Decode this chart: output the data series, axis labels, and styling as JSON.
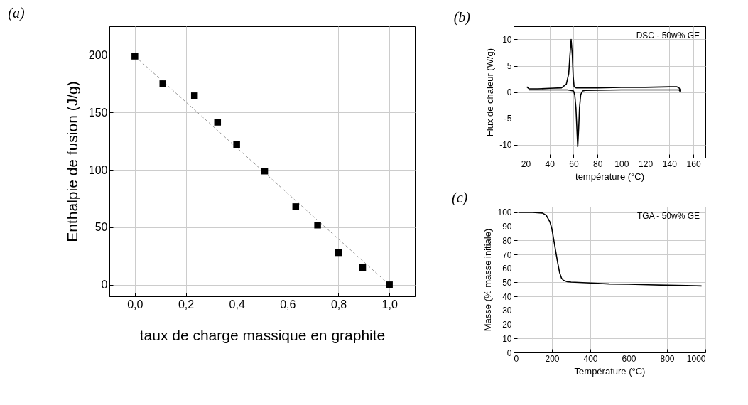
{
  "chart_data": [
    {
      "type": "scatter",
      "title": "(a)",
      "xlabel": "taux de charge massique en graphite",
      "ylabel": "Enthalpie de fusion (J/g)",
      "xlim": [
        -0.1,
        1.1
      ],
      "ylim": [
        -10,
        225
      ],
      "xticks": [
        {
          "value": 0,
          "label": "0,0"
        },
        {
          "value": 0.2,
          "label": "0,2"
        },
        {
          "value": 0.4,
          "label": "0,4"
        },
        {
          "value": 0.6,
          "label": "0,6"
        },
        {
          "value": 0.8,
          "label": "0,8"
        },
        {
          "value": 1,
          "label": "1,0"
        }
      ],
      "yticks": [
        0,
        50,
        100,
        150,
        200
      ],
      "grid": true,
      "series": [
        {
          "type": "line",
          "color": "#999999",
          "line_style": "dashed",
          "x": [
            0,
            1
          ],
          "values": [
            199,
            0
          ]
        },
        {
          "marker": "square",
          "color": "#000000",
          "x": [
            0,
            0.11,
            0.234,
            0.325,
            0.4,
            0.51,
            0.632,
            0.718,
            0.8,
            0.895,
            1.0
          ],
          "values": [
            199,
            175,
            164.5,
            141.5,
            122,
            99,
            68,
            52,
            28,
            15,
            0
          ]
        }
      ]
    },
    {
      "type": "line",
      "title": "(b)",
      "xlabel": "température (°C)",
      "ylabel": "Flux de chaleur (W/g)",
      "xlim": [
        10,
        170
      ],
      "ylim": [
        -12.5,
        12.5
      ],
      "xticks": [
        20,
        40,
        60,
        80,
        100,
        120,
        140,
        160
      ],
      "yticks": [
        -10,
        -5,
        0,
        5,
        10
      ],
      "grid": true,
      "annotations": [
        "DSC - 50w% GE"
      ],
      "series": [
        {
          "color": "#000000",
          "x": [
            21,
            23,
            30,
            40,
            50,
            54,
            56,
            57,
            58,
            59,
            59.7,
            60.5,
            62,
            80,
            100,
            120,
            140,
            146,
            148,
            149,
            149.5
          ],
          "values": [
            1.0,
            0.6,
            0.6,
            0.7,
            0.8,
            1.5,
            3.5,
            7,
            10,
            7,
            3,
            1.0,
            0.8,
            0.8,
            0.9,
            0.9,
            1.0,
            1.0,
            0.8,
            0.4,
            0.2
          ]
        },
        {
          "color": "#000000",
          "x": [
            23,
            40,
            55,
            60,
            61,
            62,
            62.8,
            63.5,
            64.3,
            65,
            66,
            67.5,
            70,
            100,
            130,
            148,
            149
          ],
          "values": [
            0.4,
            0.4,
            0.4,
            0.2,
            -0.5,
            -3,
            -7,
            -10.4,
            -7,
            -3,
            -0.5,
            0.2,
            0.3,
            0.4,
            0.4,
            0.4,
            0.1
          ]
        }
      ]
    },
    {
      "type": "line",
      "title": "(c)",
      "xlabel": "Température (°C)",
      "ylabel": "Masse (% masse initiale)",
      "xlim": [
        0,
        1000
      ],
      "ylim": [
        0,
        104
      ],
      "xticks": [
        0,
        200,
        400,
        600,
        800,
        1000
      ],
      "yticks": [
        0,
        10,
        20,
        30,
        40,
        50,
        60,
        70,
        80,
        90,
        100
      ],
      "grid": true,
      "annotations": [
        "TGA - 50w% GE"
      ],
      "series": [
        {
          "color": "#000000",
          "x": [
            25,
            100,
            150,
            170,
            190,
            200,
            210,
            220,
            230,
            240,
            250,
            260,
            280,
            300,
            400,
            500,
            600,
            700,
            800,
            900,
            980
          ],
          "values": [
            100,
            100,
            99.5,
            98,
            93,
            88,
            80,
            72,
            64,
            57,
            53,
            51.5,
            50.5,
            50.2,
            49.6,
            48.9,
            48.7,
            48.3,
            48,
            47.8,
            47.5
          ]
        }
      ]
    }
  ]
}
